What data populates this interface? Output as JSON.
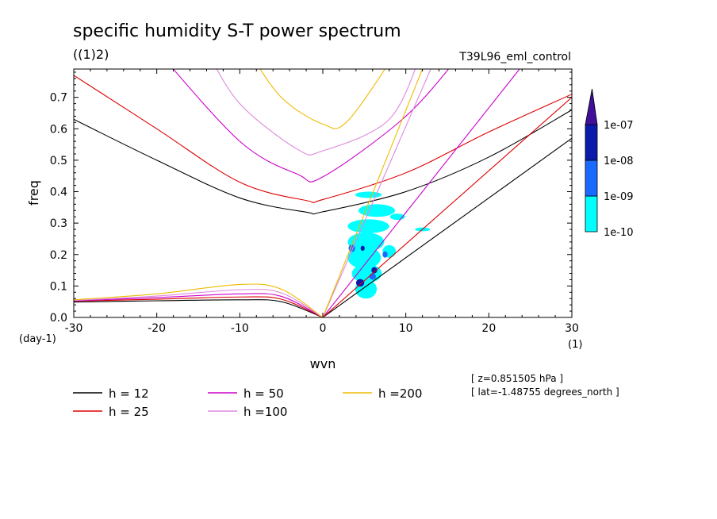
{
  "title": "specific humidity S-T power spectrum",
  "subtitle": "((1)2)",
  "experiment": "T39L96_eml_control",
  "info": [
    "[ z=0.851505 hPa ]",
    "[ lat=-1.48755 degrees_north ]"
  ],
  "colors": {
    "h12": "#000000",
    "h25": "#dd0000",
    "h50": "#cc00cc",
    "h100": "#dd88dd",
    "h200": "#eebb00",
    "c1": "#00ffff",
    "c2": "#1a6aff",
    "c3": "#0a1aaa",
    "c4": "#40109a"
  },
  "chart_data": {
    "type": "contour",
    "xlabel": "wvn",
    "ylabel": "freq",
    "x_unit": "(1)",
    "y_unit": "(day-1)",
    "xlim": [
      -30,
      30
    ],
    "ylim": [
      0,
      0.79
    ],
    "x_ticks": [
      -30,
      -20,
      -10,
      0,
      10,
      20,
      30
    ],
    "y_ticks": [
      0.0,
      0.1,
      0.2,
      0.3,
      0.4,
      0.5,
      0.6,
      0.7
    ],
    "x_tick_labels": [
      "-30",
      "-20",
      "-10",
      "0",
      "10",
      "20",
      "30"
    ],
    "y_tick_labels": [
      "0.0",
      "0.1",
      "0.2",
      "0.3",
      "0.4",
      "0.5",
      "0.6",
      "0.7"
    ],
    "colorbar": {
      "levels": [
        "1e-10",
        "1e-09",
        "1e-08",
        "1e-07"
      ],
      "extend": "max"
    },
    "dispersion_curves": [
      {
        "name": "h = 12",
        "ig": [
          [
            -30,
            0.63
          ],
          [
            -20,
            0.5
          ],
          [
            -10,
            0.38
          ],
          [
            -2,
            0.335
          ],
          [
            0,
            0.336
          ],
          [
            10,
            0.4
          ],
          [
            20,
            0.51
          ],
          [
            30,
            0.66
          ]
        ],
        "mrg": [
          [
            -30,
            0.049
          ],
          [
            -20,
            0.053
          ],
          [
            -10,
            0.056
          ],
          [
            -5,
            0.05
          ],
          [
            0,
            0
          ]
        ],
        "kelvin": [
          [
            0,
            0
          ],
          [
            30,
            0.57
          ]
        ]
      },
      {
        "name": "h = 25",
        "ig": [
          [
            -30,
            0.77
          ],
          [
            -20,
            0.6
          ],
          [
            -10,
            0.43
          ],
          [
            -2,
            0.372
          ],
          [
            0,
            0.375
          ],
          [
            10,
            0.46
          ],
          [
            20,
            0.59
          ],
          [
            30,
            0.71
          ]
        ],
        "mrg": [
          [
            -30,
            0.052
          ],
          [
            -20,
            0.058
          ],
          [
            -10,
            0.065
          ],
          [
            -5,
            0.058
          ],
          [
            0,
            0
          ]
        ],
        "kelvin": [
          [
            0,
            0
          ],
          [
            30,
            0.7
          ]
        ]
      },
      {
        "name": "h = 50",
        "ig": [
          [
            -20,
            0.85
          ],
          [
            -10,
            0.56
          ],
          [
            -3,
            0.455
          ],
          [
            0,
            0.447
          ],
          [
            10,
            0.64
          ],
          [
            17,
            0.85
          ]
        ],
        "mrg": [
          [
            -30,
            0.053
          ],
          [
            -20,
            0.063
          ],
          [
            -10,
            0.075
          ],
          [
            -5,
            0.067
          ],
          [
            0,
            0
          ]
        ],
        "kelvin": [
          [
            0,
            0
          ],
          [
            24,
            0.8
          ]
        ]
      },
      {
        "name": "h =100",
        "ig": [
          [
            -14,
            0.85
          ],
          [
            -10,
            0.68
          ],
          [
            -3,
            0.534
          ],
          [
            0,
            0.53
          ],
          [
            8,
            0.63
          ],
          [
            12,
            0.85
          ]
        ],
        "mrg": [
          [
            -30,
            0.054
          ],
          [
            -20,
            0.068
          ],
          [
            -10,
            0.088
          ],
          [
            -5,
            0.078
          ],
          [
            0,
            0
          ]
        ],
        "kelvin": [
          [
            0,
            0
          ],
          [
            13,
            0.79
          ]
        ]
      },
      {
        "name": "h =200",
        "ig": [
          [
            -9,
            0.85
          ],
          [
            -5,
            0.7
          ],
          [
            0,
            0.615
          ],
          [
            3,
            0.625
          ],
          [
            9,
            0.85
          ]
        ],
        "mrg": [
          [
            -30,
            0.056
          ],
          [
            -20,
            0.075
          ],
          [
            -10,
            0.105
          ],
          [
            -5,
            0.09
          ],
          [
            0,
            0
          ]
        ],
        "kelvin": [
          [
            0,
            0
          ],
          [
            12,
            0.79
          ]
        ]
      }
    ],
    "spectral_power": [
      {
        "level": "1e-10",
        "shape": "ellipse",
        "x": 5.5,
        "y": 0.39,
        "rx": 1.6,
        "ry": 0.01
      },
      {
        "level": "1e-10",
        "shape": "ellipse",
        "x": 6.5,
        "y": 0.34,
        "rx": 2.2,
        "ry": 0.02
      },
      {
        "level": "1e-10",
        "shape": "ellipse",
        "x": 5.5,
        "y": 0.29,
        "rx": 2.5,
        "ry": 0.022
      },
      {
        "level": "1e-10",
        "shape": "ellipse",
        "x": 5.2,
        "y": 0.24,
        "rx": 2.2,
        "ry": 0.03
      },
      {
        "level": "1e-10",
        "shape": "ellipse",
        "x": 5.0,
        "y": 0.19,
        "rx": 2.0,
        "ry": 0.035
      },
      {
        "level": "1e-10",
        "shape": "ellipse",
        "x": 5.3,
        "y": 0.14,
        "rx": 1.8,
        "ry": 0.03
      },
      {
        "level": "1e-10",
        "shape": "ellipse",
        "x": 5.2,
        "y": 0.09,
        "rx": 1.3,
        "ry": 0.03
      },
      {
        "level": "1e-10",
        "shape": "ellipse",
        "x": 8.0,
        "y": 0.21,
        "rx": 0.8,
        "ry": 0.02
      },
      {
        "level": "1e-10",
        "shape": "ellipse",
        "x": 9.0,
        "y": 0.32,
        "rx": 0.9,
        "ry": 0.01
      },
      {
        "level": "1e-10",
        "shape": "ellipse",
        "x": 12.0,
        "y": 0.28,
        "rx": 0.9,
        "ry": 0.006
      },
      {
        "level": "1e-09",
        "shape": "ellipse",
        "x": 3.5,
        "y": 0.22,
        "rx": 0.4,
        "ry": 0.012
      },
      {
        "level": "1e-09",
        "shape": "ellipse",
        "x": 6.0,
        "y": 0.13,
        "rx": 0.4,
        "ry": 0.01
      },
      {
        "level": "1e-09",
        "shape": "ellipse",
        "x": 7.5,
        "y": 0.2,
        "rx": 0.3,
        "ry": 0.01
      },
      {
        "level": "1e-08",
        "shape": "ellipse",
        "x": 4.5,
        "y": 0.11,
        "rx": 0.5,
        "ry": 0.012
      },
      {
        "level": "1e-08",
        "shape": "ellipse",
        "x": 6.2,
        "y": 0.15,
        "rx": 0.35,
        "ry": 0.01
      },
      {
        "level": "1e-08",
        "shape": "ellipse",
        "x": 4.8,
        "y": 0.22,
        "rx": 0.25,
        "ry": 0.008
      }
    ]
  }
}
